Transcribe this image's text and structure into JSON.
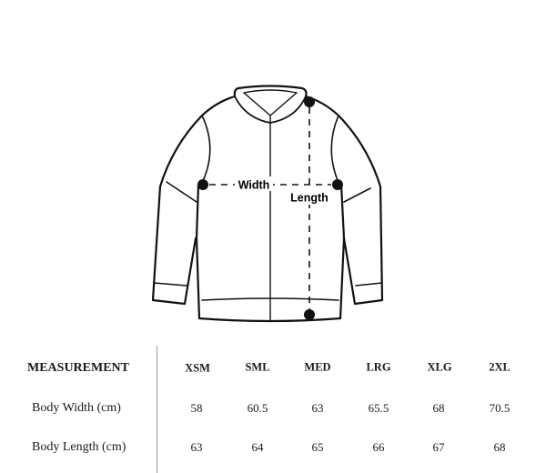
{
  "diagram": {
    "width_label": "Width",
    "length_label": "Length",
    "line_color": "#111111"
  },
  "table": {
    "header_label": "MEASUREMENT",
    "sizes": [
      "XSM",
      "SML",
      "MED",
      "LRG",
      "XLG",
      "2XL"
    ],
    "rows": [
      {
        "label": "Body Width (cm)",
        "values": [
          "58",
          "60.5",
          "63",
          "65.5",
          "68",
          "70.5"
        ]
      },
      {
        "label": "Body Length (cm)",
        "values": [
          "63",
          "64",
          "65",
          "66",
          "67",
          "68"
        ]
      }
    ]
  }
}
